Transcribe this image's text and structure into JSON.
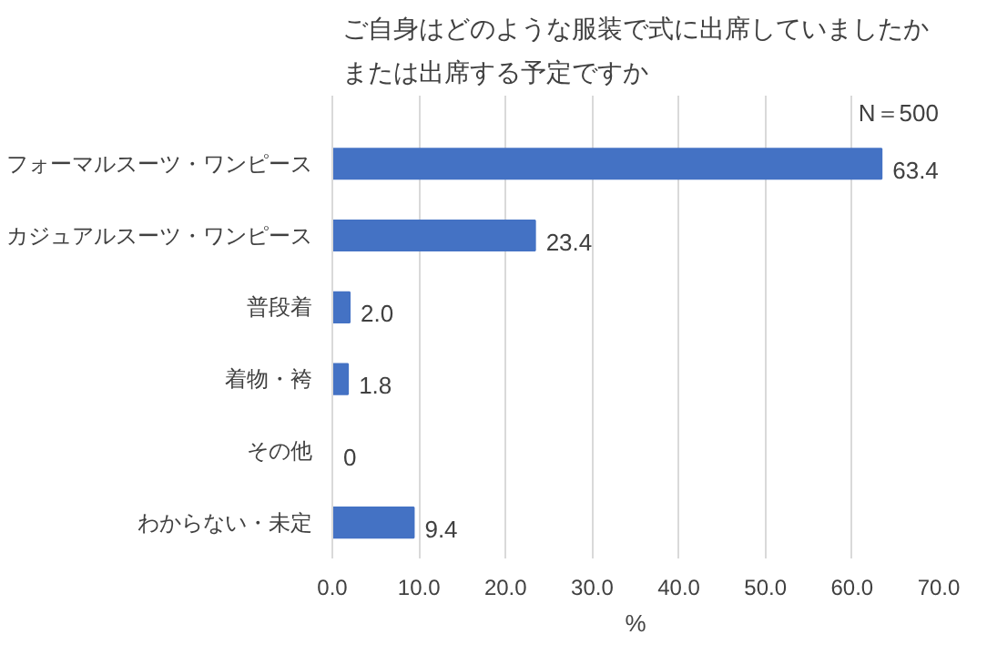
{
  "chart_data": {
    "type": "bar",
    "orientation": "horizontal",
    "title": "ご自身はどのような服装で式に出席していましたかまたは出席する予定ですか",
    "categories": [
      "フォーマルスーツ・ワンピース",
      "カジュアルスーツ・ワンピース",
      "普段着",
      "着物・袴",
      "その他",
      "わからない・未定"
    ],
    "values": [
      63.4,
      23.4,
      2.0,
      1.8,
      0,
      9.4
    ],
    "value_labels": [
      "63.4",
      "23.4",
      "2.0",
      "1.8",
      "0",
      "9.4"
    ],
    "color": "#4472c4",
    "xlabel": "%",
    "annotations": [
      "N＝500"
    ],
    "xlim": [
      0,
      70
    ],
    "xticks": [
      {
        "value": 0,
        "label": "0.0"
      },
      {
        "value": 10,
        "label": "10.0"
      },
      {
        "value": 20,
        "label": "20.0"
      },
      {
        "value": 30,
        "label": "30.0"
      },
      {
        "value": 40,
        "label": "40.0"
      },
      {
        "value": 50,
        "label": "50.0"
      },
      {
        "value": 60,
        "label": "60.0"
      },
      {
        "value": 70,
        "label": "70.0"
      }
    ],
    "grid": "x"
  }
}
